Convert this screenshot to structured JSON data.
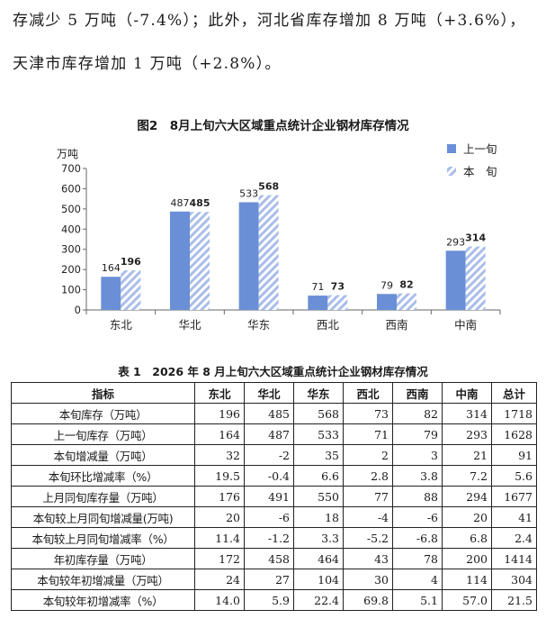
{
  "text": {
    "para1": "存减少 5 万吨（-7.4%）；此外，河北省库存增加 8 万吨（+3.6%），",
    "para2": "天津市库存增加 1 万吨（+2.8%）。"
  },
  "figure_title": "图2　8月上旬六大区域重点统计企业钢材库存情况",
  "chart_data": {
    "type": "bar",
    "ylabel": "万吨",
    "ylim": [
      0,
      700
    ],
    "yticks": [
      "0",
      "100",
      "200",
      "300",
      "400",
      "500",
      "600",
      "700"
    ],
    "categories": [
      "东北",
      "华北",
      "华东",
      "西北",
      "西南",
      "中南"
    ],
    "series": [
      {
        "name": "上一旬",
        "values": [
          164,
          487,
          533,
          71,
          79,
          293
        ],
        "color": "#6b8fd6",
        "pattern": "solid"
      },
      {
        "name": "本　旬",
        "values": [
          196,
          485,
          568,
          73,
          82,
          314
        ],
        "color": "#b9c9ec",
        "pattern": "hatched"
      }
    ],
    "legend": "top-right",
    "grid": false
  },
  "table_title": "表 1　2026 年 8 月上旬六大区域重点统计企业钢材库存情况",
  "table": {
    "headers": [
      "指标",
      "东北",
      "华北",
      "华东",
      "西北",
      "西南",
      "中南",
      "总计"
    ],
    "rows": [
      [
        "本旬库存（万吨）",
        "196",
        "485",
        "568",
        "73",
        "82",
        "314",
        "1718"
      ],
      [
        "上一旬库存（万吨）",
        "164",
        "487",
        "533",
        "71",
        "79",
        "293",
        "1628"
      ],
      [
        "本旬增减量（万吨）",
        "32",
        "-2",
        "35",
        "2",
        "3",
        "21",
        "91"
      ],
      [
        "本旬环比增减率（%）",
        "19.5",
        "-0.4",
        "6.6",
        "2.8",
        "3.8",
        "7.2",
        "5.6"
      ],
      [
        "上月同旬库存量（万吨）",
        "176",
        "491",
        "550",
        "77",
        "88",
        "294",
        "1677"
      ],
      [
        "本旬较上月同旬增减量(万吨)",
        "20",
        "-6",
        "18",
        "-4",
        "-6",
        "20",
        "41"
      ],
      [
        "本旬较上月同旬增减率（%）",
        "11.4",
        "-1.2",
        "3.3",
        "-5.2",
        "-6.8",
        "6.8",
        "2.4"
      ],
      [
        "年初库存量（万吨）",
        "172",
        "458",
        "464",
        "43",
        "78",
        "200",
        "1414"
      ],
      [
        "本旬较年初增减量（万吨）",
        "24",
        "27",
        "104",
        "30",
        "4",
        "114",
        "304"
      ],
      [
        "本旬较年初增减率（%）",
        "14.0",
        "5.9",
        "22.4",
        "69.8",
        "5.1",
        "57.0",
        "21.5"
      ]
    ]
  }
}
